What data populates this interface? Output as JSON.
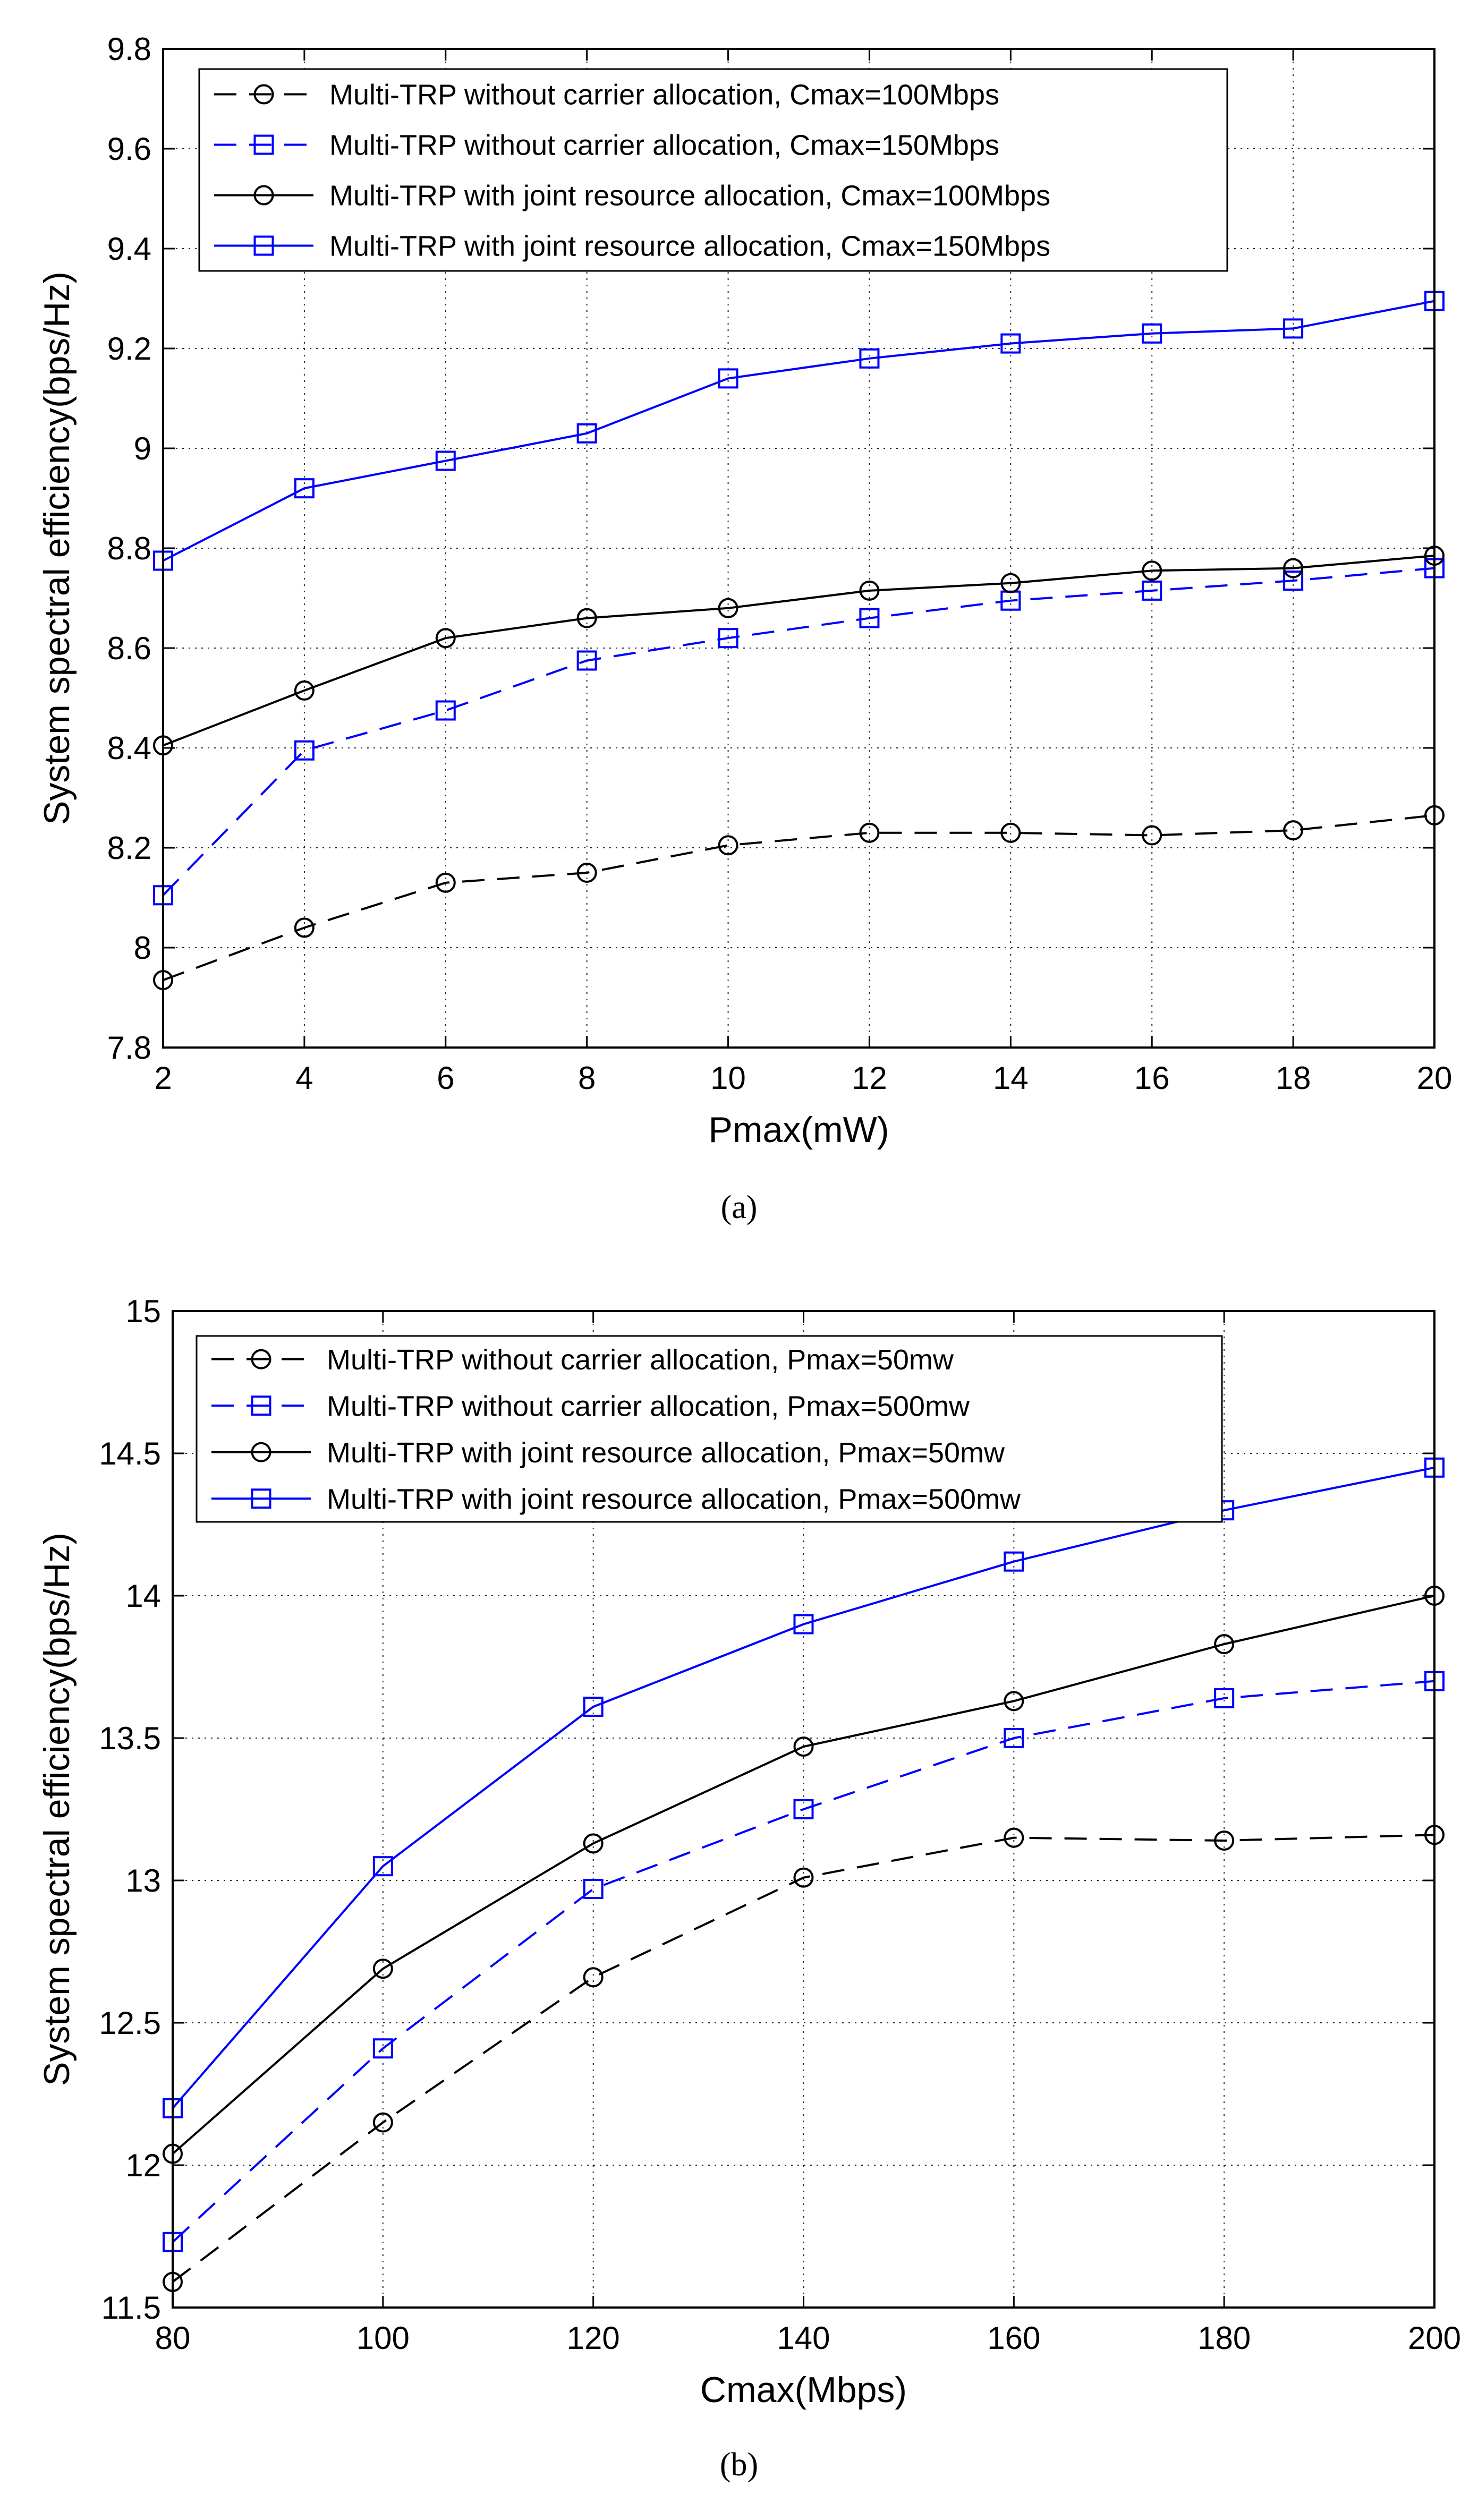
{
  "chart_data": [
    {
      "type": "line",
      "caption": "(a)",
      "xlabel": "Pmax(mW)",
      "ylabel": "System spectral efficiency(bps/Hz)",
      "xlim": [
        2,
        20
      ],
      "ylim": [
        7.8,
        9.8
      ],
      "xticks": [
        "2",
        "4",
        "6",
        "8",
        "10",
        "12",
        "14",
        "16",
        "18",
        "20"
      ],
      "yticks": [
        "7.8",
        "8",
        "8.2",
        "8.4",
        "8.6",
        "8.8",
        "9",
        "9.2",
        "9.4",
        "9.6",
        "9.8"
      ],
      "grid": true,
      "legend_position": "top-left",
      "x": [
        2,
        4,
        6,
        8,
        10,
        12,
        14,
        16,
        18,
        20
      ],
      "series": [
        {
          "name": "Multi-TRP without carrier allocation, Cmax=100Mbps",
          "color": "#000000",
          "dash": true,
          "marker": "circle",
          "values": [
            7.935,
            8.04,
            8.13,
            8.15,
            8.205,
            8.23,
            8.23,
            8.225,
            8.235,
            8.265
          ]
        },
        {
          "name": "Multi-TRP without carrier allocation, Cmax=150Mbps",
          "color": "#0000ff",
          "dash": true,
          "marker": "square",
          "values": [
            8.105,
            8.395,
            8.475,
            8.575,
            8.62,
            8.66,
            8.695,
            8.715,
            8.735,
            8.76
          ]
        },
        {
          "name": "Multi-TRP with joint resource allocation, Cmax=100Mbps",
          "color": "#000000",
          "dash": false,
          "marker": "circle",
          "values": [
            8.405,
            8.515,
            8.62,
            8.66,
            8.68,
            8.715,
            8.73,
            8.755,
            8.76,
            8.785
          ]
        },
        {
          "name": "Multi-TRP with joint resource allocation, Cmax=150Mbps",
          "color": "#0000ff",
          "dash": false,
          "marker": "square",
          "values": [
            8.775,
            8.92,
            8.975,
            9.03,
            9.14,
            9.18,
            9.21,
            9.23,
            9.24,
            9.295
          ]
        }
      ]
    },
    {
      "type": "line",
      "caption": "(b)",
      "xlabel": "Cmax(Mbps)",
      "ylabel": "System spectral efficiency(bps/Hz)",
      "xlim": [
        80,
        200
      ],
      "ylim": [
        11.5,
        15
      ],
      "xticks": [
        "80",
        "100",
        "120",
        "140",
        "160",
        "180",
        "200"
      ],
      "yticks": [
        "11.5",
        "12",
        "12.5",
        "13",
        "13.5",
        "14",
        "14.5",
        "15"
      ],
      "grid": true,
      "legend_position": "top-left",
      "x": [
        80,
        100,
        120,
        140,
        160,
        180,
        200
      ],
      "series": [
        {
          "name": "Multi-TRP without carrier allocation, Pmax=50mw",
          "color": "#000000",
          "dash": true,
          "marker": "circle",
          "values": [
            11.59,
            12.15,
            12.66,
            13.01,
            13.15,
            13.14,
            13.16
          ]
        },
        {
          "name": "Multi-TRP without carrier allocation, Pmax=500mw",
          "color": "#0000ff",
          "dash": true,
          "marker": "square",
          "values": [
            11.73,
            12.41,
            12.97,
            13.25,
            13.5,
            13.64,
            13.7
          ]
        },
        {
          "name": "Multi-TRP with joint resource allocation, Pmax=50mw",
          "color": "#000000",
          "dash": false,
          "marker": "circle",
          "values": [
            12.04,
            12.69,
            13.13,
            13.47,
            13.63,
            13.83,
            14.0
          ]
        },
        {
          "name": "Multi-TRP with joint resource allocation, Pmax=500mw",
          "color": "#0000ff",
          "dash": false,
          "marker": "square",
          "values": [
            12.2,
            13.05,
            13.61,
            13.9,
            14.12,
            14.3,
            14.45
          ]
        }
      ]
    }
  ]
}
